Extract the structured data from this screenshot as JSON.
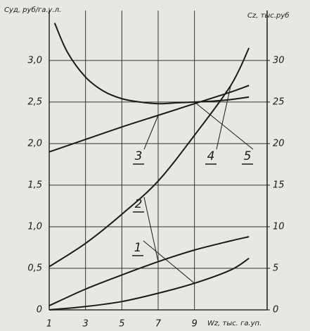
{
  "chart_data": {
    "type": "line",
    "y_label": "Cуд, руб/га.у.л.",
    "y2_label": "Cz, тыс.руб",
    "x_label": "Wz, тыс. га.уп.",
    "xlim": [
      1,
      13
    ],
    "xticks": [
      1,
      3,
      5,
      7,
      9
    ],
    "ylim": [
      0,
      3.6
    ],
    "yticks": [
      0,
      {
        "value": 0.5,
        "label": "0,5"
      },
      {
        "value": 1.0,
        "label": "1,0"
      },
      {
        "value": 1.5,
        "label": "1,5"
      },
      {
        "value": 2.0,
        "label": "2,0"
      },
      {
        "value": 2.5,
        "label": "2,5"
      },
      {
        "value": 3.0,
        "label": "3,0"
      }
    ],
    "y2lim": [
      0,
      36
    ],
    "y2ticks": [
      0,
      5,
      10,
      15,
      20,
      25,
      30
    ],
    "grid": true,
    "series": [
      {
        "name": "1",
        "color": "#1a1a1a",
        "x": [
          1,
          3,
          5,
          7,
          9,
          11,
          12
        ],
        "values": [
          0,
          0.04,
          0.1,
          0.2,
          0.32,
          0.48,
          0.62
        ]
      },
      {
        "name": "2",
        "color": "#1a1a1a",
        "x": [
          1,
          3,
          5,
          7,
          9,
          11,
          12
        ],
        "values": [
          0.05,
          0.25,
          0.42,
          0.58,
          0.72,
          0.83,
          0.88
        ]
      },
      {
        "name": "3",
        "color": "#1a1a1a",
        "x": [
          1,
          3,
          5,
          7,
          9,
          11,
          12
        ],
        "values": [
          1.9,
          2.05,
          2.2,
          2.34,
          2.48,
          2.62,
          2.7
        ]
      },
      {
        "name": "4",
        "color": "#1a1a1a",
        "axis": "y2",
        "x": [
          1,
          3,
          5,
          7,
          9,
          11,
          12
        ],
        "values": [
          5.2,
          8,
          11.5,
          15.5,
          21,
          27,
          31.5
        ]
      },
      {
        "name": "5",
        "color": "#1a1a1a",
        "x": [
          1.3,
          2,
          3,
          4,
          5,
          6,
          7,
          8,
          9,
          10,
          11,
          12
        ],
        "values": [
          3.45,
          3.1,
          2.8,
          2.63,
          2.54,
          2.5,
          2.48,
          2.49,
          2.5,
          2.51,
          2.53,
          2.56
        ]
      }
    ]
  }
}
